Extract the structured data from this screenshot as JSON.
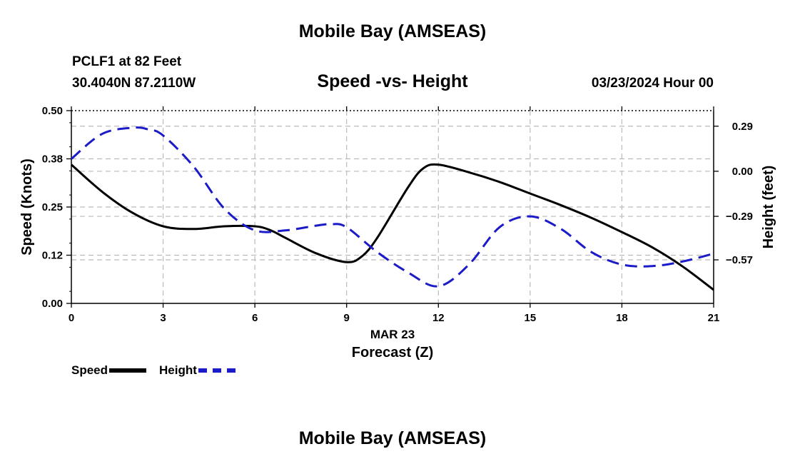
{
  "header": {
    "top_title": "Mobile Bay (AMSEAS)",
    "station": "PCLF1 at 82 Feet",
    "coords": "30.4040N  87.2110W",
    "subtitle": "Speed -vs- Height",
    "datetime": "03/23/2024 Hour 00",
    "bottom_title": "Mobile Bay (AMSEAS)"
  },
  "legend": {
    "speed_label": "Speed",
    "height_label": "Height"
  },
  "chart_data": {
    "type": "line",
    "title": "Speed -vs- Height",
    "xlabel": "Forecast (Z)",
    "xlabel_date": "MAR 23",
    "ylabel": "Speed (Knots)",
    "ylabel_right": "Height (feet)",
    "xlim": [
      0,
      21
    ],
    "ylim": [
      0,
      0.5
    ],
    "ylim_right": [
      -0.85,
      0.39
    ],
    "x_ticks": [
      0,
      3,
      6,
      9,
      12,
      15,
      18,
      21
    ],
    "x_tick_labels": [
      "0",
      "3",
      "6",
      "9",
      "12",
      "15",
      "18",
      "21"
    ],
    "y_ticks": [
      0.0,
      0.125,
      0.25,
      0.375,
      0.5
    ],
    "y_tick_labels": [
      "0.00",
      "0.12",
      "0.25",
      "0.38",
      "0.50"
    ],
    "y_right_ticks": [
      0.29,
      0.0,
      -0.29,
      -0.57
    ],
    "y_right_tick_labels": [
      "0.29",
      "0.00",
      "−0.29",
      "−0.57"
    ],
    "grid": true,
    "legend_position": "bottom-left",
    "colors": {
      "speed": "#000000",
      "height": "#1b1bc8",
      "grid": "#bbbbbb"
    },
    "series": [
      {
        "name": "Speed",
        "axis": "left",
        "x": [
          0,
          1,
          2,
          3,
          4,
          5,
          6,
          6.5,
          7,
          8,
          9,
          9.5,
          10,
          11,
          11.5,
          12,
          13,
          14,
          15,
          16,
          17,
          18,
          19,
          20,
          21
        ],
        "values": [
          0.36,
          0.29,
          0.235,
          0.2,
          0.193,
          0.2,
          0.2,
          0.19,
          0.17,
          0.13,
          0.107,
          0.122,
          0.17,
          0.3,
          0.35,
          0.36,
          0.34,
          0.315,
          0.285,
          0.255,
          0.222,
          0.185,
          0.145,
          0.095,
          0.035
        ]
      },
      {
        "name": "Height",
        "axis": "right",
        "x": [
          0,
          1,
          2,
          2.5,
          3,
          4,
          5,
          6,
          7,
          8,
          8.5,
          9,
          10,
          11,
          12,
          13,
          14,
          15,
          16,
          17,
          18,
          19,
          20,
          21
        ],
        "values": [
          0.08,
          0.24,
          0.28,
          0.27,
          0.23,
          0.03,
          -0.24,
          -0.38,
          -0.38,
          -0.35,
          -0.34,
          -0.36,
          -0.52,
          -0.65,
          -0.74,
          -0.6,
          -0.36,
          -0.29,
          -0.37,
          -0.52,
          -0.6,
          -0.61,
          -0.58,
          -0.53
        ]
      }
    ]
  }
}
